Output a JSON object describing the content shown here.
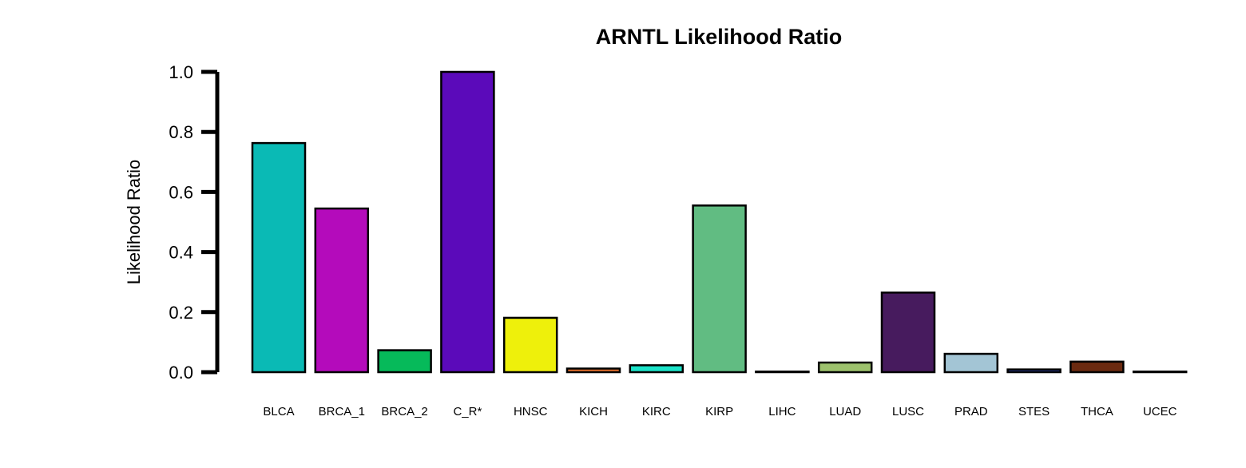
{
  "chart_data": {
    "type": "bar",
    "title": "ARNTL Likelihood Ratio",
    "xlabel": "",
    "ylabel": "Likelihood Ratio",
    "ylim": [
      0,
      1.0
    ],
    "yticks": [
      "0.0",
      "0.2",
      "0.4",
      "0.6",
      "0.8",
      "1.0"
    ],
    "grid": false,
    "categories": [
      "BLCA",
      "BRCA_1",
      "BRCA_2",
      "C_R*",
      "HNSC",
      "KICH",
      "KIRC",
      "KIRP",
      "LIHC",
      "LUAD",
      "LUSC",
      "PRAD",
      "STES",
      "THCA",
      "UCEC"
    ],
    "values": [
      0.763,
      0.545,
      0.073,
      1.0,
      0.181,
      0.012,
      0.023,
      0.555,
      0.002,
      0.032,
      0.265,
      0.061,
      0.009,
      0.035,
      0.002
    ],
    "colors": [
      "#0ABAB5",
      "#B40BBB",
      "#06BA5A",
      "#5B0ABA",
      "#EEF00B",
      "#E06C2A",
      "#1BE3C8",
      "#61BC82",
      "#2C2C2C",
      "#9DC26D",
      "#471B5E",
      "#A3C5D5",
      "#2B3C9C",
      "#6B2A10",
      "#3A3A3A"
    ]
  }
}
